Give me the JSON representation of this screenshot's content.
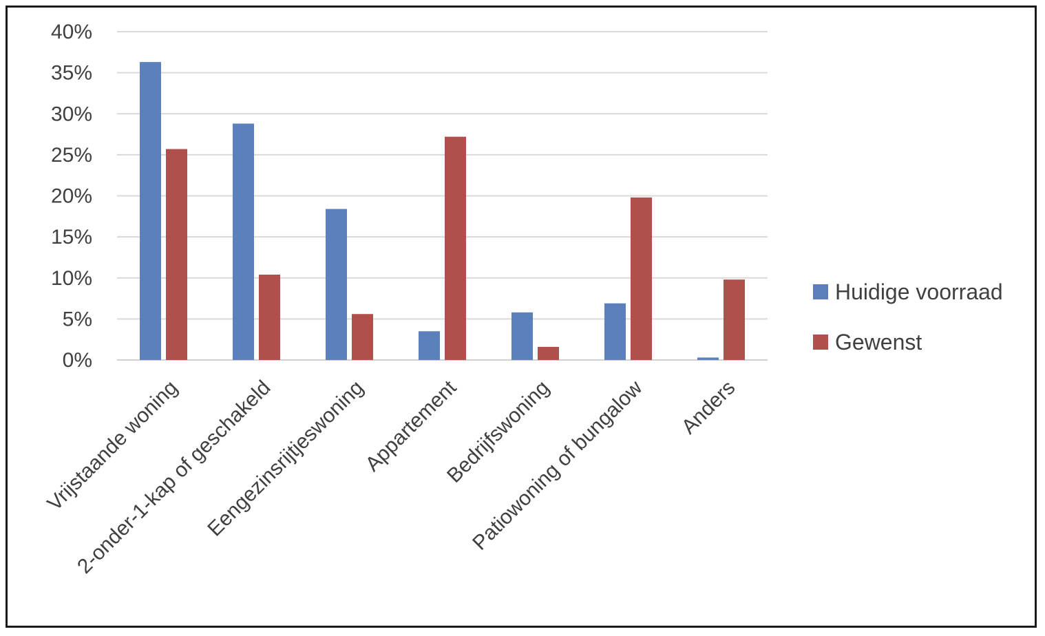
{
  "chart_data": {
    "type": "bar",
    "categories": [
      "Vrijstaande woning",
      "2-onder-1-kap of geschakeld",
      "Eengezinsrijtjeswoning",
      "Appartement",
      "Bedrijfswoning",
      "Patiowoning of bungalow",
      "Anders"
    ],
    "series": [
      {
        "name": "Huidige voorraad",
        "color": "#5b80bb",
        "values": [
          36.3,
          28.8,
          18.4,
          3.5,
          5.8,
          6.9,
          0.3
        ]
      },
      {
        "name": "Gewenst",
        "color": "#b0504c",
        "values": [
          25.7,
          10.4,
          5.6,
          27.2,
          1.6,
          19.8,
          9.8
        ]
      }
    ],
    "y_ticks": [
      "0%",
      "5%",
      "10%",
      "15%",
      "20%",
      "25%",
      "30%",
      "35%",
      "40%"
    ],
    "ylim": [
      0,
      40
    ],
    "y_unit": "%",
    "grid": true,
    "legend_position": "right",
    "title": "",
    "xlabel": "",
    "ylabel": ""
  }
}
